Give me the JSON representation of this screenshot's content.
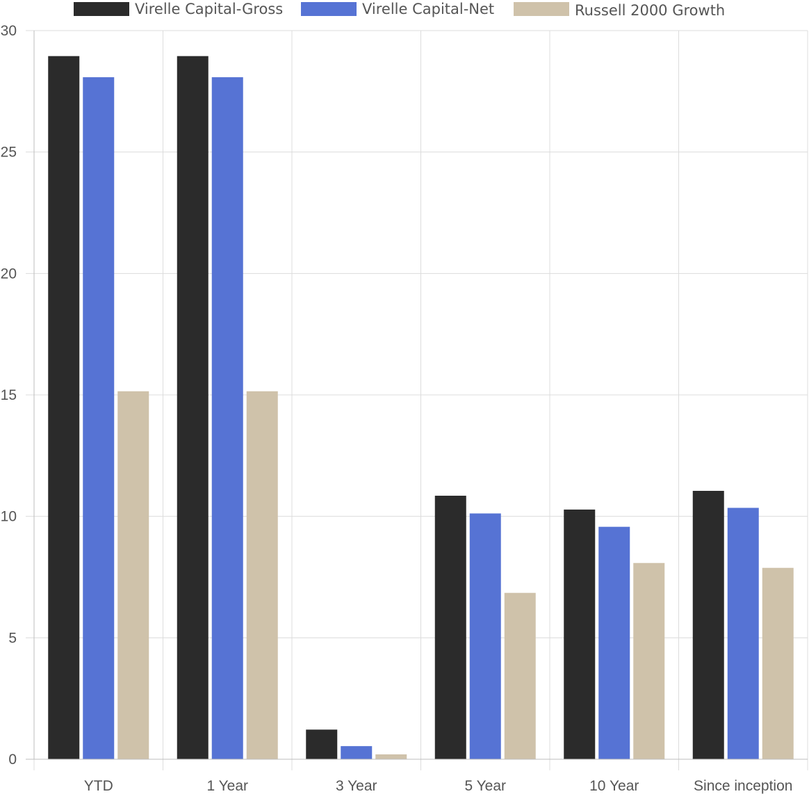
{
  "chart_data": {
    "type": "bar",
    "title": "",
    "xlabel": "",
    "ylabel": "",
    "categories": [
      "YTD",
      "1 Year",
      "3 Year",
      "5 Year",
      "10 Year",
      "Since inception"
    ],
    "series": [
      {
        "name": "Virelle Capital-Gross",
        "color": "#2b2b2b",
        "values": [
          28.95,
          28.95,
          1.22,
          10.85,
          10.28,
          11.05
        ]
      },
      {
        "name": "Virelle Capital-Net",
        "color": "#5673d4",
        "values": [
          28.08,
          28.08,
          0.54,
          10.12,
          9.57,
          10.35
        ]
      },
      {
        "name": "Russell 2000 Growth",
        "color": "#cfc2aa",
        "values": [
          15.15,
          15.15,
          0.2,
          6.85,
          8.08,
          7.88
        ]
      }
    ],
    "ylim": [
      0,
      30
    ],
    "yticks": [
      0,
      5,
      10,
      15,
      20,
      25,
      30
    ],
    "grid": true,
    "legend_position": "top"
  }
}
